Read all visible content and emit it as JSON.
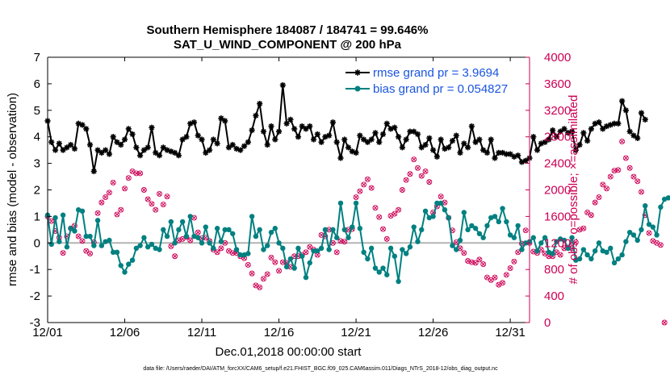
{
  "chart_data": {
    "type": "line",
    "title_line1": "Southern Hemisphere 184087 / 184741 = 99.646%",
    "title_line2": "SAT_U_WIND_COMPONENT @ 200 hPa",
    "xlabel": "Dec.01,2018 00:00:00 start",
    "ylabel_left": "rmse and bias (model - observation)",
    "ylabel_right": "# of obs: o=possible; ×=assimilated",
    "xlim": [
      0,
      31.25
    ],
    "ylim_left": [
      -3,
      7
    ],
    "ylim_right": [
      0,
      4000
    ],
    "x_ticks": [
      0,
      5,
      10,
      15,
      20,
      25,
      30
    ],
    "x_tick_labels": [
      "12/01",
      "12/06",
      "12/11",
      "12/16",
      "12/21",
      "12/26",
      "12/31"
    ],
    "y_ticks_left": [
      -3,
      -2,
      -1,
      0,
      1,
      2,
      3,
      4,
      5,
      6,
      7
    ],
    "y_ticks_right": [
      0,
      400,
      800,
      1200,
      1600,
      2000,
      2400,
      2800,
      3200,
      3600,
      4000
    ],
    "zero_line": 0,
    "legend_position": "top-right",
    "series": [
      {
        "name": "rmse grand pr = 3.9694",
        "color": "#000000",
        "axis": "left",
        "values": [
          4.6,
          3.8,
          3.5,
          3.75,
          3.5,
          3.6,
          3.7,
          3.55,
          4.5,
          4.45,
          4.3,
          3.7,
          2.7,
          3.5,
          3.4,
          3.5,
          3.35,
          4.0,
          3.8,
          3.7,
          3.9,
          4.3,
          4.1,
          3.6,
          3.3,
          3.5,
          3.6,
          4.35,
          3.4,
          3.3,
          3.6,
          3.5,
          3.45,
          3.4,
          3.3,
          3.9,
          4.0,
          4.5,
          4.55,
          4.05,
          3.9,
          3.4,
          3.5,
          3.9,
          3.75,
          4.7,
          4.6,
          3.6,
          3.7,
          3.55,
          3.5,
          3.65,
          3.8,
          4.25,
          4.8,
          5.25,
          4.2,
          3.7,
          4.4,
          3.9,
          4.2,
          5.95,
          4.5,
          4.65,
          4.3,
          4.0,
          4.4,
          4.3,
          4.4,
          3.9,
          4.1,
          3.8,
          4.0,
          4.05,
          4.55,
          3.8,
          3.2,
          3.9,
          3.6,
          3.45,
          3.4,
          4.05,
          3.9,
          3.8,
          3.9,
          4.15,
          3.8,
          4.1,
          4.5,
          4.3,
          4.35,
          4.0,
          3.6,
          3.9,
          4.2,
          4.2,
          4.1,
          3.6,
          3.7,
          3.95,
          3.5,
          3.25,
          3.9,
          3.55,
          3.6,
          3.85,
          4.05,
          3.4,
          3.75,
          3.6,
          4.4,
          3.8,
          3.9,
          3.5,
          3.4,
          3.9,
          3.2,
          3.4,
          3.4,
          3.35,
          3.35,
          3.25,
          3.3,
          3.05,
          3.1,
          3.2,
          4.0,
          3.5,
          3.75,
          3.8,
          3.9,
          4.25,
          4.0,
          4.2,
          4.3,
          4.15,
          4.2,
          3.5,
          3.7,
          4.15,
          3.85,
          4.3,
          4.5,
          4.55,
          4.3,
          4.4,
          4.45,
          4.5,
          4.5,
          5.35,
          5.0,
          4.2,
          4.05,
          3.95,
          4.9,
          4.65
        ]
      },
      {
        "name": "bias grand pr = 0.054827",
        "color": "#008080",
        "axis": "left",
        "values": [
          1.05,
          -0.05,
          0.95,
          0.05,
          1.05,
          -0.15,
          0.55,
          0.45,
          1.25,
          1.2,
          0.25,
          0.25,
          -0.1,
          0.85,
          -0.1,
          0.05,
          0.1,
          -0.35,
          -0.35,
          -0.85,
          -1.1,
          -0.8,
          -0.65,
          -0.2,
          -0.1,
          0.2,
          -0.15,
          -0.05,
          -0.2,
          -0.25,
          0.5,
          0.25,
          0.8,
          0.0,
          0.5,
          0.8,
          0.25,
          1.0,
          0.25,
          0.2,
          0.0,
          0.6,
          0.0,
          -0.2,
          0.55,
          0.05,
          0.5,
          0.5,
          0.35,
          -0.25,
          -0.45,
          -0.45,
          -0.4,
          1.0,
          0.25,
          0.5,
          -0.25,
          -0.1,
          0.4,
          0.55,
          0.0,
          -0.2,
          -0.9,
          -0.6,
          -0.95,
          -0.2,
          -0.5,
          -1.3,
          -0.75,
          -0.3,
          -0.3,
          -0.2,
          0.5,
          -0.25,
          0.5,
          0.2,
          1.5,
          0.5,
          0.2,
          0.6,
          1.5,
          0.55,
          -0.35,
          -0.6,
          -0.2,
          -0.95,
          -1.1,
          -0.95,
          -1.2,
          -0.2,
          -0.5,
          -1.45,
          -0.25,
          -0.4,
          -0.15,
          0.6,
          0.05,
          0.5,
          1.2,
          0.95,
          1.0,
          1.5,
          1.5,
          1.25,
          0.95,
          -0.1,
          -0.25,
          0.1,
          1.15,
          0.5,
          0.65,
          0.55,
          0.35,
          0.2,
          0.65,
          0.95,
          1.0,
          0.8,
          1.3,
          0.8,
          0.3,
          0.2,
          0.65,
          -0.25,
          0.0,
          0.05,
          0.2,
          -0.3,
          0.0,
          0.2,
          -0.35,
          -0.4,
          0.05,
          0.15,
          0.1,
          -0.2,
          0.2,
          -0.65,
          -0.6,
          -0.25,
          -0.45,
          -0.6,
          -0.3,
          0.0,
          -0.3,
          -0.35,
          -0.2,
          -0.75,
          -0.6,
          -0.45,
          0.05,
          0.4,
          0.3,
          0.1,
          0.5,
          1.4,
          0.7,
          0.6,
          0.3,
          1.35,
          1.65,
          1.7
        ]
      },
      {
        "name": "obs possible",
        "color": "#cc0055",
        "axis": "right",
        "values": [
          1600,
          1530,
          1380,
          1280,
          1050,
          1300,
          1420,
          1460,
          1300,
          1230,
          1080,
          1040,
          1210,
          1650,
          1810,
          1890,
          1960,
          2110,
          1630,
          1700,
          2020,
          2180,
          2280,
          2250,
          2250,
          2000,
          1860,
          1790,
          1700,
          1940,
          1780,
          1900,
          1150,
          1000,
          1240,
          1260,
          1290,
          1240,
          1580,
          1360,
          1270,
          1280,
          1230,
          1100,
          1060,
          1120,
          1200,
          1080,
          1050,
          1050,
          1000,
          970,
          870,
          740,
          560,
          530,
          660,
          730,
          980,
          910,
          780,
          910,
          900,
          840,
          1000,
          1000,
          1020,
          1060,
          1140,
          1100,
          1020,
          1320,
          1300,
          1400,
          1200,
          1060,
          1230,
          1220,
          1400,
          1410,
          1890,
          1980,
          2080,
          2160,
          2030,
          1730,
          1590,
          1410,
          1260,
          1610,
          1640,
          1700,
          2000,
          2150,
          2240,
          2460,
          2330,
          2210,
          2280,
          2120,
          1660,
          1750,
          1900,
          1810,
          1580,
          1390,
          1210,
          1120,
          1050,
          930,
          910,
          900,
          950,
          880,
          680,
          640,
          680,
          570,
          600,
          720,
          820,
          920,
          1060,
          1190,
          1390,
          1200,
          1070,
          1050,
          1100,
          1040,
          1000,
          1000,
          1060,
          1020,
          1120,
          1130,
          1120,
          1210,
          1400,
          1420,
          1660,
          1620,
          1810,
          1890,
          2080,
          2020,
          2200,
          2290,
          2300,
          2730,
          2480,
          2330,
          2200,
          2130,
          1970,
          1620,
          1350,
          1230,
          1200,
          1170,
          0
        ]
      },
      {
        "name": "obs assimilated",
        "color": "#cc0055",
        "axis": "right",
        "values": [
          1600,
          1530,
          1380,
          1280,
          1050,
          1300,
          1420,
          1460,
          1300,
          1230,
          1080,
          1040,
          1210,
          1650,
          1810,
          1890,
          1960,
          2110,
          1630,
          1700,
          2020,
          2180,
          2280,
          2250,
          2250,
          2000,
          1860,
          1790,
          1700,
          1940,
          1780,
          1900,
          1150,
          1000,
          1240,
          1260,
          1290,
          1240,
          1580,
          1360,
          1270,
          1280,
          1230,
          1100,
          1060,
          1120,
          1200,
          1080,
          1050,
          1050,
          1000,
          970,
          870,
          740,
          560,
          530,
          660,
          730,
          980,
          910,
          780,
          910,
          900,
          840,
          1000,
          1000,
          1020,
          1060,
          1140,
          1100,
          1020,
          1320,
          1300,
          1400,
          1200,
          1060,
          1230,
          1220,
          1400,
          1410,
          1890,
          1980,
          2080,
          2160,
          2030,
          1730,
          1590,
          1410,
          1260,
          1610,
          1640,
          1700,
          2000,
          2150,
          2240,
          2460,
          2330,
          2210,
          2280,
          2120,
          1660,
          1750,
          1900,
          1810,
          1580,
          1390,
          1210,
          1120,
          1050,
          930,
          910,
          900,
          950,
          880,
          680,
          640,
          680,
          570,
          600,
          720,
          820,
          920,
          1060,
          1190,
          1390,
          1200,
          1070,
          1050,
          1100,
          1040,
          1000,
          1000,
          1060,
          1020,
          1120,
          1130,
          1120,
          1210,
          1400,
          1420,
          1660,
          1620,
          1810,
          1890,
          2080,
          2020,
          2200,
          2290,
          2300,
          2730,
          2480,
          2330,
          2200,
          2130,
          1970,
          1620,
          1350,
          1230,
          1200,
          1170,
          0
        ]
      }
    ]
  },
  "footer": {
    "data_file": "data file: /Users/raeder/DAI/ATM_forcXX/CAM6_setup/f.e21.FHIST_BGC.f09_025.CAM6assim.011/Diags_NTrS_2018-12/obs_diag_output.nc"
  }
}
